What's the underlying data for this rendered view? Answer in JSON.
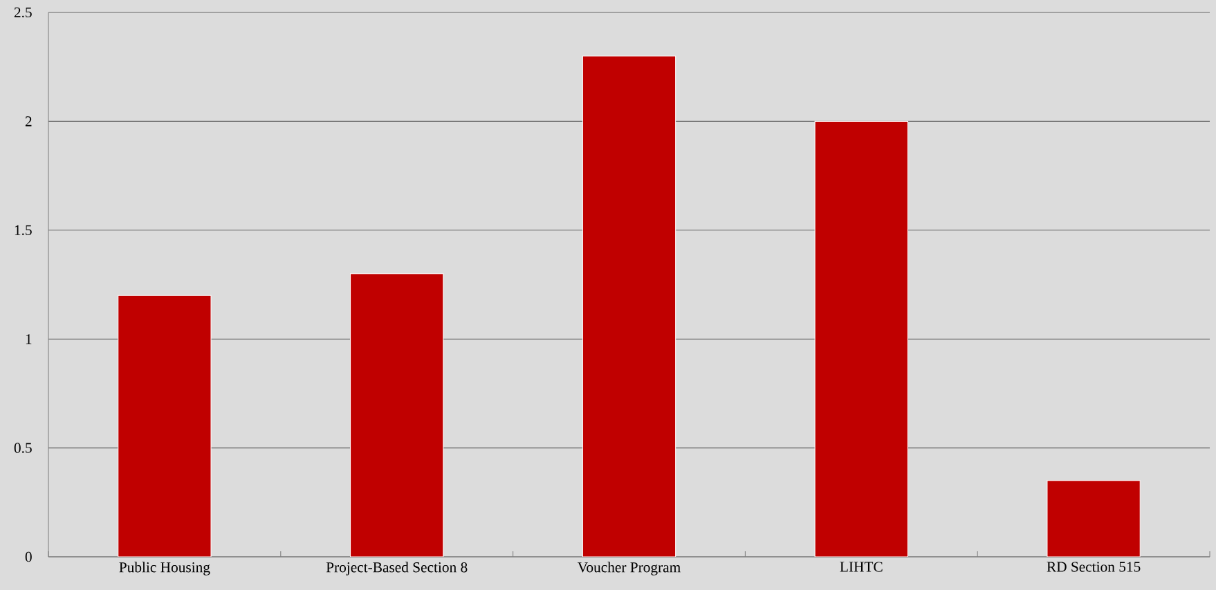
{
  "chart_data": {
    "type": "bar",
    "categories": [
      "Public Housing",
      "Project-Based Section 8",
      "Voucher Program",
      "LIHTC",
      "RD Section 515"
    ],
    "values": [
      1.2,
      1.3,
      2.3,
      2.0,
      0.35
    ],
    "color": "#c00000",
    "ylim": [
      0,
      2.5
    ],
    "yticks": [
      0,
      0.5,
      1,
      1.5,
      2,
      2.5
    ],
    "grid": "y"
  }
}
